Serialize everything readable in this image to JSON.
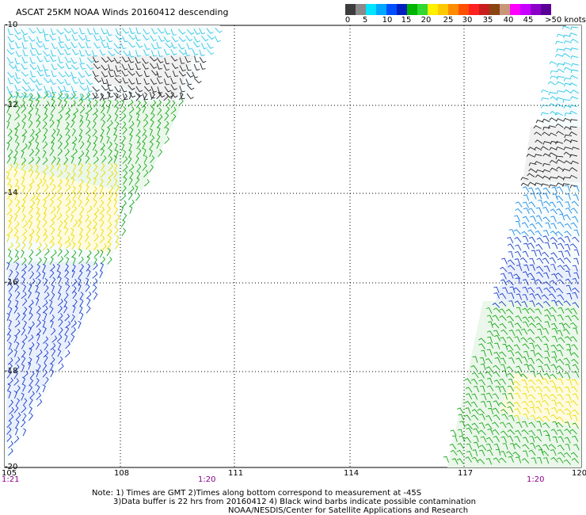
{
  "title": "ASCAT 25KM NOAA Winds 20160412 descending",
  "colorbar": {
    "colors": [
      "#3c3c3c",
      "#8a8a8a",
      "#00e4ff",
      "#00a8ff",
      "#0050ff",
      "#0020c0",
      "#00b400",
      "#30d830",
      "#fff000",
      "#ffc800",
      "#ff8c00",
      "#ff5000",
      "#ff2020",
      "#c81e1e",
      "#8b4513",
      "#c89678",
      "#ff00ff",
      "#c800ff",
      "#8c00c8",
      "#5a0096"
    ],
    "labels": [
      "0",
      "5",
      "10",
      "15",
      "20",
      "25",
      "30",
      "35",
      "40",
      "45",
      ">50 knots"
    ]
  },
  "axes": {
    "lat_labels": [
      "-10",
      "-12",
      "-14",
      "-16",
      "-18",
      "-20"
    ],
    "lon_labels": [
      "105",
      "108",
      "111",
      "114",
      "117",
      "120"
    ]
  },
  "times": [
    "1:21",
    "1:20",
    "1:20"
  ],
  "notes": [
    "Note: 1) Times are GMT 2)Times along bottom correspond to measurement at -45S",
    "3)Data buffer is 22 hrs from 20160412 4) Black wind barbs indicate possible contamination",
    "NOAA/NESDIS/Center for Satellite Applications and Research"
  ]
}
